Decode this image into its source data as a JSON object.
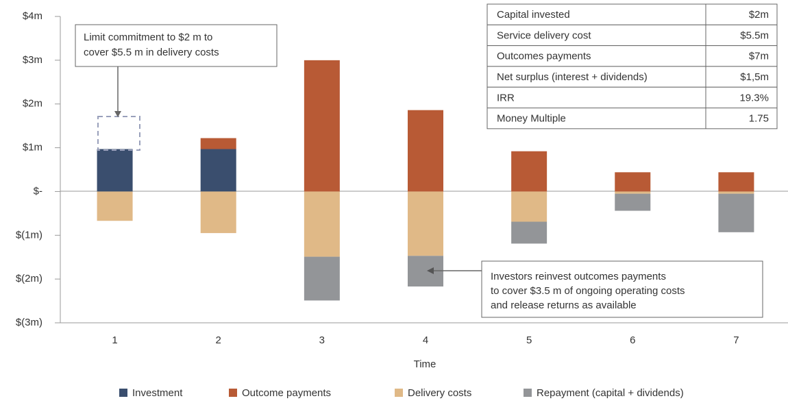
{
  "chart_data": {
    "type": "bar",
    "stacked": true,
    "x_label": "Time",
    "categories": [
      "1",
      "2",
      "3",
      "4",
      "5",
      "6",
      "7"
    ],
    "series": [
      {
        "name": "Investment",
        "color": "#3a4e6e",
        "values": [
          0.97,
          0.97,
          0,
          0,
          0,
          0,
          0
        ]
      },
      {
        "name": "Outcome payments",
        "color": "#b85a35",
        "values": [
          0,
          0.25,
          3.0,
          1.86,
          0.92,
          0.44,
          0.44
        ]
      },
      {
        "name": "Delivery costs",
        "color": "#e0b987",
        "values": [
          -0.67,
          -0.95,
          -1.49,
          -1.47,
          -0.69,
          -0.05,
          -0.05
        ]
      },
      {
        "name": "Repayment (capital + dividends)",
        "color": "#939598",
        "values": [
          0,
          0,
          -1.0,
          -0.7,
          -0.5,
          -0.39,
          -0.88
        ]
      }
    ],
    "ylim": [
      -3,
      4
    ],
    "yticks": [
      {
        "value": -3,
        "label": "$(3m)"
      },
      {
        "value": -2,
        "label": "$(2m)"
      },
      {
        "value": -1,
        "label": "$(1m)"
      },
      {
        "value": 0,
        "label": "$-"
      },
      {
        "value": 1,
        "label": "$1m"
      },
      {
        "value": 2,
        "label": "$2m"
      },
      {
        "value": 3,
        "label": "$3m"
      },
      {
        "value": 4,
        "label": "$4m"
      }
    ],
    "legend": "bottom",
    "annotations": [
      {
        "lines": [
          "Limit commitment to $2 m to",
          "cover $5.5 m in delivery costs"
        ]
      },
      {
        "lines": [
          "Investors reinvest outcomes payments",
          "to cover $3.5 m of ongoing operating costs",
          "and release returns as available"
        ]
      }
    ],
    "table": {
      "rows": [
        [
          "Capital invested",
          "$2m"
        ],
        [
          "Service delivery cost",
          "$5.5m"
        ],
        [
          "Outcomes payments",
          "$7m"
        ],
        [
          "Net surplus (interest + dividends)",
          "$1,5m"
        ],
        [
          "IRR",
          "19.3%"
        ],
        [
          "Money Multiple",
          "1.75"
        ]
      ]
    }
  }
}
